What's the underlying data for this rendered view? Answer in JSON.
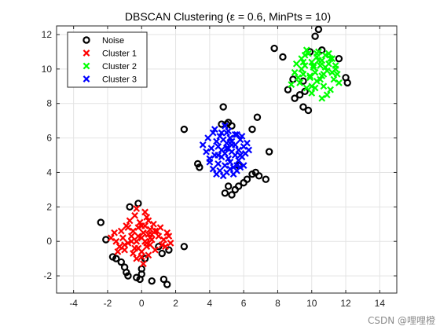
{
  "chart_data": {
    "type": "scatter",
    "title": "DBSCAN Clustering (ε = 0.6, MinPts = 10)",
    "xlabel": "",
    "ylabel": "",
    "xlim": [
      -5,
      15
    ],
    "ylim": [
      -3,
      12.5
    ],
    "x_ticks": [
      -4,
      -2,
      0,
      2,
      4,
      6,
      8,
      10,
      12,
      14
    ],
    "y_ticks": [
      -2,
      0,
      2,
      4,
      6,
      8,
      10,
      12
    ],
    "grid": true,
    "legend_position": "top-left",
    "series": [
      {
        "name": "Noise",
        "marker": "o",
        "color": "#000000",
        "x": [
          -2.4,
          -2.1,
          -1.7,
          -1.5,
          -1.2,
          -1.0,
          -0.9,
          -0.8,
          -0.7,
          -0.3,
          -0.2,
          -0.1,
          0.0,
          0.0,
          0.2,
          0.6,
          1.0,
          1.2,
          1.3,
          1.5,
          1.6,
          2.5,
          2.5,
          3.3,
          3.4,
          4.7,
          4.8,
          5.0,
          5.1,
          5.3,
          5.7,
          6.5,
          6.8,
          7.3,
          7.5,
          4.9,
          5.1,
          5.3,
          5.5,
          5.7,
          6.0,
          6.2,
          6.5,
          6.7,
          6.9,
          7.8,
          8.3,
          8.6,
          8.9,
          9.0,
          9.3,
          9.5,
          9.6,
          9.9,
          10.2,
          10.4,
          10.6,
          11.6,
          12.0,
          12.1,
          9.5,
          9.8
        ],
        "y": [
          1.1,
          0.1,
          -0.9,
          -1.0,
          -1.2,
          -1.5,
          -1.8,
          -2.0,
          2.0,
          -2.1,
          2.2,
          -2.2,
          -1.6,
          -1.9,
          -1.0,
          -2.3,
          -0.3,
          -0.7,
          -2.2,
          -2.5,
          -0.5,
          -0.3,
          6.5,
          4.5,
          4.3,
          6.8,
          7.8,
          6.8,
          6.9,
          6.7,
          4.4,
          6.5,
          7.2,
          3.6,
          5.2,
          2.8,
          3.2,
          2.7,
          3.0,
          3.2,
          3.4,
          3.6,
          3.9,
          4.0,
          3.8,
          11.2,
          10.7,
          8.8,
          9.4,
          8.3,
          8.5,
          9.3,
          8.7,
          11.0,
          11.9,
          12.3,
          11.1,
          10.6,
          9.5,
          9.2,
          7.8,
          7.6
        ],
        "mask": [
          1,
          1,
          1,
          1,
          1,
          1,
          1,
          1,
          1,
          1,
          1,
          1,
          1,
          1,
          1,
          1,
          1,
          1,
          1,
          1,
          1,
          1,
          1,
          1,
          1,
          1,
          1,
          1,
          1,
          1,
          1,
          1,
          1,
          1,
          1,
          1,
          1,
          1,
          1,
          1,
          1,
          1,
          1,
          1,
          1,
          1,
          1,
          1,
          1,
          1,
          1,
          1,
          1,
          1,
          1,
          1,
          1,
          1,
          1,
          1,
          1,
          1
        ]
      },
      {
        "name": "Cluster 1",
        "marker": "x",
        "color": "#ff0000",
        "x": [
          -1.8,
          -1.6,
          -1.5,
          -1.3,
          -1.2,
          -1.1,
          -1.0,
          -0.9,
          -0.8,
          -0.7,
          -0.6,
          -0.5,
          -0.5,
          -0.4,
          -0.3,
          -0.3,
          -0.2,
          -0.2,
          -0.1,
          0.0,
          0.0,
          0.1,
          0.1,
          0.2,
          0.2,
          0.3,
          0.3,
          0.4,
          0.4,
          0.5,
          0.5,
          0.6,
          0.7,
          0.8,
          0.9,
          1.0,
          1.1,
          1.2,
          1.3,
          1.5,
          1.6,
          1.7,
          -1.0,
          -0.6,
          -0.2,
          0.3,
          0.6,
          -0.4,
          0.0,
          0.4,
          -0.8,
          0.2,
          -0.3,
          0.8,
          1.4,
          -1.4,
          0.0,
          0.5
        ],
        "y": [
          0.2,
          0.5,
          0.0,
          -0.3,
          0.6,
          0.2,
          -0.5,
          0.9,
          -0.1,
          1.2,
          0.3,
          -0.7,
          0.6,
          1.5,
          0.0,
          -1.0,
          0.8,
          -0.4,
          1.1,
          0.2,
          -0.6,
          0.5,
          -1.3,
          0.9,
          0.0,
          -0.3,
          1.4,
          0.4,
          -0.8,
          0.7,
          -0.2,
          0.1,
          1.0,
          -0.5,
          0.6,
          0.3,
          0.8,
          -0.2,
          0.1,
          0.5,
          0.3,
          -0.1,
          -0.2,
          0.0,
          0.3,
          -0.1,
          0.4,
          -0.4,
          0.9,
          1.2,
          0.8,
          1.7,
          1.9,
          0.6,
          -0.3,
          -0.6,
          -0.9,
          0.2
        ]
      },
      {
        "name": "Cluster 2",
        "marker": "x",
        "color": "#00ff00",
        "x": [
          8.8,
          9.0,
          9.1,
          9.3,
          9.4,
          9.5,
          9.6,
          9.7,
          9.8,
          9.9,
          10.0,
          10.0,
          10.1,
          10.2,
          10.3,
          10.3,
          10.4,
          10.5,
          10.6,
          10.6,
          10.7,
          10.8,
          10.9,
          11.0,
          11.1,
          11.2,
          11.3,
          11.4,
          11.5,
          11.6,
          9.2,
          9.6,
          10.0,
          10.4,
          10.8,
          11.2,
          9.4,
          9.9,
          10.5,
          11.0,
          11.4,
          9.7,
          10.2,
          10.7,
          11.1,
          10.1,
          10.6,
          9.5,
          10.9,
          10.3
        ],
        "y": [
          9.1,
          9.8,
          10.3,
          9.2,
          10.6,
          9.7,
          10.2,
          8.9,
          10.9,
          9.5,
          10.4,
          8.6,
          10.1,
          9.8,
          10.7,
          9.3,
          11.0,
          10.2,
          9.6,
          10.5,
          9.0,
          10.8,
          9.9,
          10.3,
          8.8,
          10.6,
          9.4,
          10.0,
          9.7,
          9.2,
          9.5,
          10.8,
          9.0,
          10.5,
          10.1,
          9.8,
          10.0,
          9.6,
          9.4,
          10.9,
          10.2,
          11.1,
          8.9,
          9.7,
          10.6,
          10.2,
          8.3,
          10.4,
          8.5,
          10.9
        ]
      },
      {
        "name": "Cluster 3",
        "marker": "x",
        "color": "#0000ff",
        "x": [
          3.6,
          3.8,
          3.9,
          4.0,
          4.1,
          4.2,
          4.3,
          4.4,
          4.5,
          4.5,
          4.6,
          4.7,
          4.7,
          4.8,
          4.9,
          4.9,
          5.0,
          5.0,
          5.1,
          5.1,
          5.2,
          5.2,
          5.3,
          5.3,
          5.4,
          5.5,
          5.5,
          5.6,
          5.7,
          5.7,
          5.8,
          5.9,
          6.0,
          6.1,
          6.2,
          6.3,
          4.2,
          4.4,
          4.6,
          4.8,
          5.0,
          5.2,
          5.4,
          5.6,
          5.8,
          6.0,
          4.3,
          4.7,
          5.1,
          5.5,
          5.9,
          4.0,
          4.5,
          5.0,
          5.3,
          5.8,
          4.9,
          5.6
        ],
        "y": [
          5.6,
          5.2,
          6.0,
          4.8,
          5.4,
          6.3,
          5.0,
          5.8,
          4.5,
          5.5,
          6.1,
          4.9,
          5.3,
          5.9,
          4.4,
          5.1,
          5.7,
          6.3,
          4.8,
          5.4,
          6.0,
          4.6,
          5.2,
          5.8,
          4.3,
          5.0,
          5.6,
          6.2,
          4.7,
          5.3,
          5.9,
          4.9,
          5.5,
          5.1,
          5.7,
          5.3,
          4.2,
          3.9,
          4.1,
          3.8,
          4.0,
          4.2,
          3.9,
          4.1,
          4.3,
          4.4,
          6.5,
          6.3,
          6.4,
          6.2,
          6.1,
          4.6,
          5.0,
          5.4,
          5.6,
          5.0,
          6.7,
          4.4
        ]
      }
    ]
  },
  "watermark": "CSDN @哩哩橙"
}
